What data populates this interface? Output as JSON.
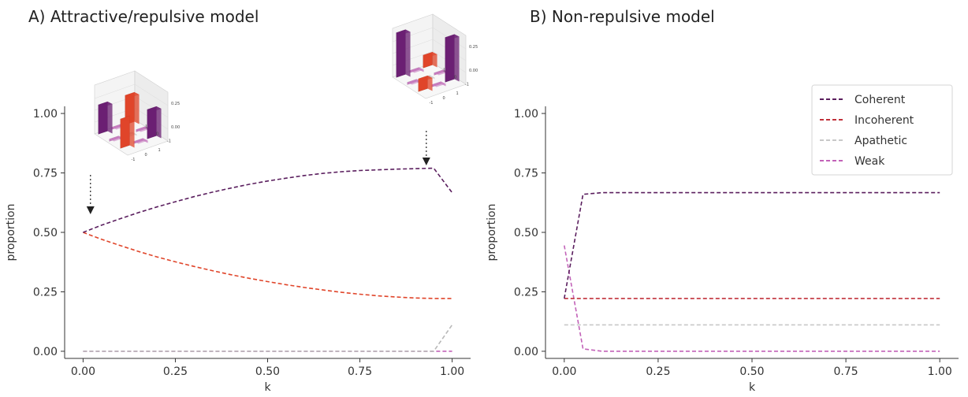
{
  "chart_data": [
    {
      "type": "line",
      "title": "A)  Attractive/repulsive model",
      "xlabel": "k",
      "ylabel": "proportion",
      "xlim": [
        -0.05,
        1.05
      ],
      "ylim": [
        -0.03,
        1.03
      ],
      "xticks": [
        "0.00",
        "0.25",
        "0.50",
        "0.75",
        "1.00"
      ],
      "yticks": [
        "0.00",
        "0.25",
        "0.50",
        "0.75",
        "1.00"
      ],
      "grid": false,
      "series": [
        {
          "name": "Coherent",
          "color": "#5a1e5e",
          "x": [
            0,
            0.05,
            0.1,
            0.15,
            0.2,
            0.25,
            0.3,
            0.35,
            0.4,
            0.45,
            0.5,
            0.55,
            0.6,
            0.65,
            0.7,
            0.75,
            0.8,
            0.85,
            0.9,
            0.95,
            1.0
          ],
          "y": [
            0.5,
            0.53,
            0.557,
            0.583,
            0.607,
            0.629,
            0.65,
            0.669,
            0.686,
            0.702,
            0.716,
            0.728,
            0.739,
            0.748,
            0.755,
            0.76,
            0.763,
            0.766,
            0.768,
            0.77,
            0.667
          ]
        },
        {
          "name": "Incoherent",
          "color": "#e0452a",
          "x": [
            0,
            0.05,
            0.1,
            0.15,
            0.2,
            0.25,
            0.3,
            0.35,
            0.4,
            0.45,
            0.5,
            0.55,
            0.6,
            0.65,
            0.7,
            0.75,
            0.8,
            0.85,
            0.9,
            0.95,
            1.0
          ],
          "y": [
            0.5,
            0.471,
            0.445,
            0.42,
            0.397,
            0.376,
            0.357,
            0.339,
            0.322,
            0.307,
            0.293,
            0.28,
            0.268,
            0.258,
            0.248,
            0.24,
            0.233,
            0.228,
            0.224,
            0.222,
            0.222
          ]
        },
        {
          "name": "Apathetic",
          "color": "#b8b8b8",
          "x": [
            0,
            0.5,
            0.95,
            1.0
          ],
          "y": [
            0.0,
            0.0,
            0.0,
            0.111
          ]
        },
        {
          "name": "Weak",
          "color": "#c262b8",
          "x": [
            0,
            0.5,
            1.0
          ],
          "y": [
            0.0,
            0.0,
            0.0
          ]
        }
      ],
      "insets": [
        {
          "at_k": 0.02,
          "zticks": [
            "0.25",
            "0.00"
          ],
          "xticks": [
            "-1",
            "0",
            "1"
          ],
          "yticks": [
            "1",
            "0",
            "-1"
          ],
          "bars": [
            {
              "row": 0,
              "col": 0,
              "height": 0.25,
              "color": "#6b1f73"
            },
            {
              "row": 0,
              "col": 1,
              "height": 0.02,
              "color": "#c77bbf"
            },
            {
              "row": 0,
              "col": 2,
              "height": 0.25,
              "color": "#e0452a"
            },
            {
              "row": 1,
              "col": 0,
              "height": 0.02,
              "color": "#c77bbf"
            },
            {
              "row": 1,
              "col": 1,
              "height": 0.0,
              "color": "#cfcfcf"
            },
            {
              "row": 1,
              "col": 2,
              "height": 0.02,
              "color": "#c77bbf"
            },
            {
              "row": 2,
              "col": 0,
              "height": 0.25,
              "color": "#e0452a"
            },
            {
              "row": 2,
              "col": 1,
              "height": 0.02,
              "color": "#c77bbf"
            },
            {
              "row": 2,
              "col": 2,
              "height": 0.25,
              "color": "#6b1f73"
            }
          ]
        },
        {
          "at_k": 0.93,
          "zticks": [
            "0.25",
            "0.00"
          ],
          "xticks": [
            "-1",
            "0",
            "1"
          ],
          "yticks": [
            "1",
            "0",
            "-1"
          ],
          "bars": [
            {
              "row": 0,
              "col": 0,
              "height": 0.38,
              "color": "#6b1f73"
            },
            {
              "row": 0,
              "col": 1,
              "height": 0.02,
              "color": "#c77bbf"
            },
            {
              "row": 0,
              "col": 2,
              "height": 0.11,
              "color": "#e0452a"
            },
            {
              "row": 1,
              "col": 0,
              "height": 0.02,
              "color": "#c77bbf"
            },
            {
              "row": 1,
              "col": 1,
              "height": 0.0,
              "color": "#cfcfcf"
            },
            {
              "row": 1,
              "col": 2,
              "height": 0.02,
              "color": "#c77bbf"
            },
            {
              "row": 2,
              "col": 0,
              "height": 0.11,
              "color": "#e0452a"
            },
            {
              "row": 2,
              "col": 1,
              "height": 0.02,
              "color": "#c77bbf"
            },
            {
              "row": 2,
              "col": 2,
              "height": 0.38,
              "color": "#6b1f73"
            }
          ]
        }
      ]
    },
    {
      "type": "line",
      "title": "B)  Non-repulsive model",
      "xlabel": "k",
      "ylabel": "proportion",
      "xlim": [
        -0.05,
        1.05
      ],
      "ylim": [
        -0.03,
        1.03
      ],
      "xticks": [
        "0.00",
        "0.25",
        "0.50",
        "0.75",
        "1.00"
      ],
      "yticks": [
        "0.00",
        "0.25",
        "0.50",
        "0.75",
        "1.00"
      ],
      "grid": false,
      "legend": "top-right",
      "series": [
        {
          "name": "Coherent",
          "color": "#5a1e5e",
          "x": [
            0.0,
            0.05,
            0.1,
            0.25,
            0.5,
            0.75,
            1.0
          ],
          "y": [
            0.222,
            0.66,
            0.667,
            0.667,
            0.667,
            0.667,
            0.667
          ]
        },
        {
          "name": "Incoherent",
          "color": "#c0303a",
          "x": [
            0.0,
            0.25,
            0.5,
            0.75,
            1.0
          ],
          "y": [
            0.222,
            0.222,
            0.222,
            0.222,
            0.222
          ]
        },
        {
          "name": "Apathetic",
          "color": "#c8c8c8",
          "x": [
            0.0,
            0.25,
            0.5,
            0.75,
            1.0
          ],
          "y": [
            0.111,
            0.111,
            0.111,
            0.111,
            0.111
          ]
        },
        {
          "name": "Weak",
          "color": "#c262b8",
          "x": [
            0.0,
            0.05,
            0.1,
            0.25,
            0.5,
            0.75,
            1.0
          ],
          "y": [
            0.445,
            0.01,
            0.0,
            0.0,
            0.0,
            0.0,
            0.0
          ]
        }
      ]
    }
  ]
}
